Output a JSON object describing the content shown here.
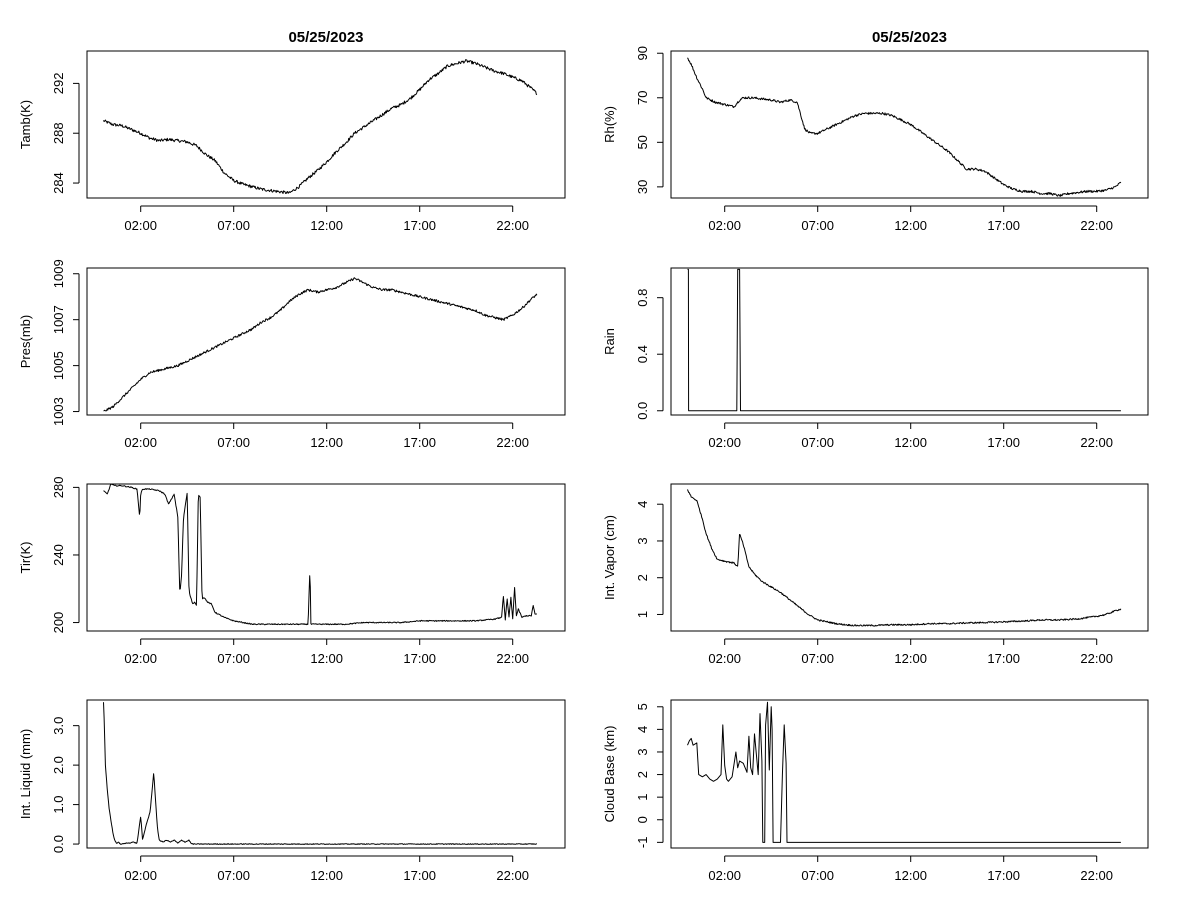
{
  "chart_data": [
    {
      "id": "tamb",
      "type": "line",
      "title": "05/25/2023",
      "xlabel": "",
      "ylabel": "Tamb(K)",
      "xlim": [
        0,
        24
      ],
      "ylim": [
        282.8,
        294.6
      ],
      "xticks": [
        2,
        7,
        12,
        17,
        22
      ],
      "xtick_labels": [
        "02:00",
        "07:00",
        "12:00",
        "17:00",
        "22:00"
      ],
      "yticks": [
        284,
        288,
        292
      ],
      "ytick_labels": [
        "284",
        "288",
        "292"
      ],
      "x": [
        0,
        0.5,
        1,
        1.5,
        2,
        2.5,
        3,
        3.5,
        4,
        4.5,
        5,
        5.5,
        6,
        6.5,
        7,
        7.5,
        8,
        8.5,
        9,
        9.5,
        10,
        10.5,
        11,
        11.5,
        12,
        12.5,
        13,
        13.5,
        14,
        14.5,
        15,
        15.5,
        16,
        16.5,
        17,
        17.5,
        18,
        18.5,
        19,
        19.5,
        20,
        20.5,
        21,
        21.5,
        22,
        22.5,
        23,
        23.3
      ],
      "y": [
        289.0,
        288.7,
        288.6,
        288.3,
        288.0,
        287.6,
        287.4,
        287.5,
        287.4,
        287.3,
        287.0,
        286.3,
        285.8,
        284.8,
        284.2,
        283.9,
        283.7,
        283.5,
        283.4,
        283.3,
        283.2,
        283.7,
        284.4,
        285.0,
        285.7,
        286.5,
        287.2,
        288.0,
        288.5,
        289.0,
        289.5,
        290.0,
        290.3,
        290.8,
        291.5,
        292.3,
        292.8,
        293.4,
        293.6,
        293.8,
        293.6,
        293.3,
        293.0,
        292.8,
        292.5,
        292.2,
        291.6,
        291.2
      ],
      "noise": 0.12
    },
    {
      "id": "rh",
      "type": "line",
      "title": "05/25/2023",
      "xlabel": "",
      "ylabel": "Rh(%)",
      "xlim": [
        0,
        24
      ],
      "ylim": [
        25,
        91
      ],
      "xticks": [
        2,
        7,
        12,
        17,
        22
      ],
      "xtick_labels": [
        "02:00",
        "07:00",
        "12:00",
        "17:00",
        "22:00"
      ],
      "yticks": [
        30,
        50,
        70,
        90
      ],
      "ytick_labels": [
        "30",
        "50",
        "70",
        "90"
      ],
      "x": [
        0,
        0.2,
        0.5,
        0.8,
        1,
        1.5,
        2,
        2.5,
        2.8,
        3,
        3.5,
        4,
        4.5,
        5,
        5.5,
        5.9,
        6.1,
        6.3,
        6.6,
        7,
        7.5,
        8,
        8.5,
        9,
        9.5,
        10,
        10.5,
        11,
        11.5,
        12,
        12.5,
        13,
        13.5,
        14,
        14.5,
        15,
        15.5,
        16,
        16.5,
        17,
        17.5,
        18,
        18.5,
        19,
        19.5,
        20,
        20.5,
        21,
        21.5,
        22,
        22.5,
        23,
        23.3
      ],
      "y": [
        88,
        85,
        79,
        74,
        70,
        68,
        67,
        66,
        69,
        70,
        70,
        69.5,
        69,
        68,
        69,
        68,
        62,
        56,
        54,
        54,
        56,
        58,
        60,
        62,
        63,
        63,
        63,
        62,
        60,
        58,
        55,
        52,
        49,
        46,
        42,
        38,
        38,
        37,
        34,
        31,
        29,
        28,
        28,
        27,
        27,
        26,
        27,
        27.5,
        28,
        28,
        28.5,
        30,
        32
      ],
      "noise": 0.5
    },
    {
      "id": "pres",
      "type": "line",
      "title": "",
      "xlabel": "",
      "ylabel": "Pres(mb)",
      "xlim": [
        0,
        24
      ],
      "ylim": [
        1002.85,
        1009.25
      ],
      "xticks": [
        2,
        7,
        12,
        17,
        22
      ],
      "xtick_labels": [
        "02:00",
        "07:00",
        "12:00",
        "17:00",
        "22:00"
      ],
      "yticks": [
        1003,
        1005,
        1007,
        1009
      ],
      "ytick_labels": [
        "1003",
        "1005",
        "1007",
        "1009"
      ],
      "x": [
        0,
        0.5,
        1,
        1.5,
        2,
        2.5,
        3,
        3.5,
        4,
        4.5,
        5,
        5.5,
        6,
        6.5,
        7,
        7.5,
        8,
        8.5,
        9,
        9.5,
        10,
        10.5,
        11,
        11.5,
        12,
        12.5,
        13,
        13.5,
        14,
        14.5,
        15,
        15.5,
        16,
        16.5,
        17,
        17.5,
        18,
        18.5,
        19,
        19.5,
        20,
        20.5,
        21,
        21.5,
        22,
        22.5,
        23,
        23.3
      ],
      "y": [
        1003.0,
        1003.2,
        1003.6,
        1004.0,
        1004.4,
        1004.7,
        1004.8,
        1004.9,
        1005.0,
        1005.2,
        1005.4,
        1005.6,
        1005.8,
        1006.0,
        1006.2,
        1006.4,
        1006.6,
        1006.9,
        1007.1,
        1007.4,
        1007.8,
        1008.1,
        1008.3,
        1008.2,
        1008.3,
        1008.4,
        1008.6,
        1008.8,
        1008.6,
        1008.4,
        1008.3,
        1008.3,
        1008.2,
        1008.1,
        1008.0,
        1007.9,
        1007.8,
        1007.7,
        1007.6,
        1007.5,
        1007.4,
        1007.2,
        1007.1,
        1007.0,
        1007.2,
        1007.5,
        1007.9,
        1008.1
      ],
      "noise": 0.05
    },
    {
      "id": "rain",
      "type": "line",
      "title": "",
      "xlabel": "",
      "ylabel": "Rain",
      "xlim": [
        0,
        24
      ],
      "ylim": [
        -0.03,
        1.01
      ],
      "xticks": [
        2,
        7,
        12,
        17,
        22
      ],
      "xtick_labels": [
        "02:00",
        "07:00",
        "12:00",
        "17:00",
        "22:00"
      ],
      "yticks": [
        0.0,
        0.4,
        0.8
      ],
      "ytick_labels": [
        "0.0",
        "0.4",
        "0.8"
      ],
      "x": [
        0,
        0.05,
        0.06,
        2.65,
        2.7,
        2.8,
        2.85,
        23.3
      ],
      "y": [
        1,
        1,
        0,
        0,
        1,
        1,
        0,
        0
      ],
      "noise": 0
    },
    {
      "id": "tir",
      "type": "line",
      "title": "",
      "xlabel": "",
      "ylabel": "Tir(K)",
      "xlim": [
        0,
        24
      ],
      "ylim": [
        195,
        282
      ],
      "xticks": [
        2,
        7,
        12,
        17,
        22
      ],
      "xtick_labels": [
        "02:00",
        "07:00",
        "12:00",
        "17:00",
        "22:00"
      ],
      "yticks": [
        200,
        240,
        280
      ],
      "ytick_labels": [
        "200",
        "240",
        "280"
      ],
      "x": [
        0,
        0.2,
        0.4,
        0.6,
        1,
        1.5,
        1.8,
        1.95,
        2.0,
        2.1,
        2.5,
        3,
        3.3,
        3.5,
        3.8,
        4.0,
        4.1,
        4.2,
        4.3,
        4.5,
        4.6,
        4.8,
        4.9,
        5.0,
        5.1,
        5.2,
        5.3,
        5.4,
        5.6,
        5.8,
        6,
        6.5,
        7,
        7.5,
        8,
        9,
        10,
        11,
        11.1,
        11.15,
        11.2,
        11.3,
        12,
        13,
        14,
        15,
        16,
        17,
        18,
        19,
        20,
        21,
        21.4,
        21.5,
        21.6,
        21.7,
        21.8,
        21.9,
        22.0,
        22.1,
        22.2,
        22.3,
        22.5,
        22.7,
        23.0,
        23.1,
        23.2,
        23.3
      ],
      "y": [
        278,
        276,
        282,
        281,
        281,
        280,
        279,
        262,
        276,
        279,
        279,
        278,
        276,
        270,
        276,
        262,
        217,
        228,
        262,
        277,
        218,
        211,
        212,
        210,
        276,
        274,
        214,
        215,
        212,
        211,
        206,
        203,
        201,
        200,
        199,
        199,
        199,
        199,
        233,
        199,
        199,
        199,
        199,
        199,
        200,
        200,
        200,
        201,
        201,
        201,
        201,
        202,
        203,
        216,
        201,
        214,
        203,
        215,
        202,
        221,
        204,
        208,
        203,
        204,
        204,
        210,
        205,
        205
      ],
      "noise": 0.3
    },
    {
      "id": "vapor",
      "type": "line",
      "title": "",
      "xlabel": "",
      "ylabel": "Int. Vapor (cm)",
      "xlim": [
        0,
        24
      ],
      "ylim": [
        0.55,
        4.55
      ],
      "xticks": [
        2,
        7,
        12,
        17,
        22
      ],
      "xtick_labels": [
        "02:00",
        "07:00",
        "12:00",
        "17:00",
        "22:00"
      ],
      "yticks": [
        1,
        2,
        3,
        4
      ],
      "ytick_labels": [
        "1",
        "2",
        "3",
        "4"
      ],
      "x": [
        0,
        0.2,
        0.5,
        0.8,
        1.0,
        1.3,
        1.6,
        2.0,
        2.5,
        2.7,
        2.8,
        3.0,
        3.3,
        3.6,
        4,
        4.5,
        5,
        5.5,
        6,
        6.5,
        7,
        7.5,
        8,
        8.5,
        9,
        10,
        11,
        12,
        13,
        14,
        15,
        16,
        17,
        18,
        19,
        20,
        21,
        22,
        22.5,
        23,
        23.3
      ],
      "y": [
        4.4,
        4.2,
        4.1,
        3.6,
        3.2,
        2.8,
        2.5,
        2.45,
        2.4,
        2.3,
        3.2,
        2.9,
        2.3,
        2.1,
        1.9,
        1.75,
        1.6,
        1.4,
        1.2,
        1.0,
        0.85,
        0.8,
        0.75,
        0.72,
        0.7,
        0.7,
        0.72,
        0.72,
        0.75,
        0.75,
        0.77,
        0.78,
        0.8,
        0.82,
        0.85,
        0.85,
        0.88,
        0.95,
        1.0,
        1.1,
        1.15
      ],
      "noise": 0.02
    },
    {
      "id": "liquid",
      "type": "line",
      "title": "",
      "xlabel": "",
      "ylabel": "Int. Liquid (mm)",
      "xlim": [
        0,
        24
      ],
      "ylim": [
        -0.1,
        3.65
      ],
      "xticks": [
        2,
        7,
        12,
        17,
        22
      ],
      "xtick_labels": [
        "02:00",
        "07:00",
        "12:00",
        "17:00",
        "22:00"
      ],
      "yticks": [
        0.0,
        1.0,
        2.0,
        3.0
      ],
      "ytick_labels": [
        "0.0",
        "1.0",
        "2.0",
        "3.0"
      ],
      "x": [
        0,
        0.05,
        0.1,
        0.2,
        0.3,
        0.4,
        0.5,
        0.6,
        0.7,
        0.8,
        0.9,
        1.0,
        1.2,
        1.4,
        1.6,
        1.8,
        2.0,
        2.1,
        2.2,
        2.3,
        2.5,
        2.6,
        2.7,
        2.8,
        2.9,
        3.0,
        3.2,
        3.4,
        3.6,
        3.8,
        4.0,
        4.2,
        4.4,
        4.6,
        4.7,
        4.8,
        23.3
      ],
      "y": [
        3.6,
        3.0,
        2.0,
        1.4,
        0.9,
        0.6,
        0.3,
        0.1,
        0.02,
        0.05,
        0.0,
        0.0,
        0.02,
        0.03,
        0.05,
        0.02,
        0.7,
        0.1,
        0.3,
        0.5,
        0.8,
        1.3,
        1.8,
        1.1,
        0.4,
        0.1,
        0.05,
        0.1,
        0.05,
        0.1,
        0.02,
        0.1,
        0.05,
        0.1,
        0.02,
        0.0,
        0.0
      ],
      "noise": 0.01
    },
    {
      "id": "cloud",
      "type": "line",
      "title": "",
      "xlabel": "",
      "ylabel": "Cloud Base (km)",
      "xlim": [
        0,
        24
      ],
      "ylim": [
        -1.25,
        5.3
      ],
      "xticks": [
        2,
        7,
        12,
        17,
        22
      ],
      "xtick_labels": [
        "02:00",
        "07:00",
        "12:00",
        "17:00",
        "22:00"
      ],
      "yticks": [
        -1,
        0,
        1,
        2,
        3,
        4,
        5
      ],
      "ytick_labels": [
        "-1",
        "0",
        "1",
        "2",
        "3",
        "4",
        "5"
      ],
      "x": [
        0,
        0.1,
        0.2,
        0.3,
        0.5,
        0.6,
        0.8,
        1.0,
        1.2,
        1.4,
        1.6,
        1.8,
        1.9,
        2.0,
        2.1,
        2.2,
        2.4,
        2.6,
        2.7,
        2.8,
        3.0,
        3.2,
        3.3,
        3.4,
        3.5,
        3.6,
        3.8,
        3.9,
        4.0,
        4.05,
        4.1,
        4.15,
        4.2,
        4.3,
        4.4,
        4.5,
        4.55,
        4.6,
        4.65,
        4.9,
        5.0,
        5.1,
        5.2,
        5.3,
        5.35,
        5.4,
        5.5,
        23.3
      ],
      "y": [
        3.3,
        3.5,
        3.6,
        3.3,
        3.4,
        2.0,
        1.9,
        2.0,
        1.8,
        1.7,
        1.8,
        2.0,
        4.2,
        2.4,
        1.8,
        1.7,
        1.9,
        3.0,
        2.3,
        2.6,
        2.5,
        2.1,
        3.7,
        2.3,
        2.0,
        3.8,
        2.0,
        4.7,
        2.6,
        -1,
        -1,
        -1,
        4.2,
        5.2,
        2.2,
        5.0,
        4.0,
        -1,
        -1,
        -1,
        -1,
        2.0,
        4.2,
        2.5,
        -1,
        -1,
        -1,
        -1
      ],
      "noise": 0
    }
  ]
}
